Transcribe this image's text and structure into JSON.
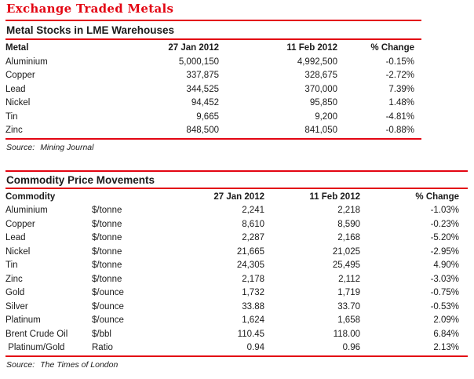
{
  "page_title": "Exchange Traded Metals",
  "accent_color": "#e30613",
  "metal_stocks": {
    "title": "Metal Stocks in LME Warehouses",
    "columns": [
      "Metal",
      "27 Jan 2012",
      "11 Feb 2012",
      "% Change"
    ],
    "rows": [
      [
        "Aluminium",
        "5,000,150",
        "4,992,500",
        "-0.15%"
      ],
      [
        "Copper",
        "337,875",
        "328,675",
        "-2.72%"
      ],
      [
        "Lead",
        "344,525",
        "370,000",
        "7.39%"
      ],
      [
        "Nickel",
        "94,452",
        "95,850",
        "1.48%"
      ],
      [
        "Tin",
        "9,665",
        "9,200",
        "-4.81%"
      ],
      [
        "Zinc",
        "848,500",
        "841,050",
        "-0.88%"
      ]
    ],
    "source_label": "Source:",
    "source": "Mining Journal"
  },
  "commodity_prices": {
    "title": "Commodity Price Movements",
    "columns": [
      "Commodity",
      "",
      "27 Jan 2012",
      "11 Feb 2012",
      "% Change"
    ],
    "rows": [
      [
        "Aluminium",
        "$/tonne",
        "2,241",
        "2,218",
        "-1.03%"
      ],
      [
        "Copper",
        "$/tonne",
        "8,610",
        "8,590",
        "-0.23%"
      ],
      [
        "Lead",
        "$/tonne",
        "2,287",
        "2,168",
        "-5.20%"
      ],
      [
        "Nickel",
        "$/tonne",
        "21,665",
        "21,025",
        "-2.95%"
      ],
      [
        "Tin",
        "$/tonne",
        "24,305",
        "25,495",
        "4.90%"
      ],
      [
        "Zinc",
        "$/tonne",
        "2,178",
        "2,112",
        "-3.03%"
      ],
      [
        "Gold",
        "$/ounce",
        "1,732",
        "1,719",
        "-0.75%"
      ],
      [
        "Silver",
        "$/ounce",
        "33.88",
        "33.70",
        "-0.53%"
      ],
      [
        "Platinum",
        "$/ounce",
        "1,624",
        "1,658",
        "2.09%"
      ],
      [
        "Brent Crude Oil",
        "$/bbl",
        "110.45",
        "118.00",
        "6.84%"
      ],
      [
        " Platinum/Gold",
        "Ratio",
        "0.94",
        "0.96",
        "2.13%"
      ]
    ],
    "source_label": "Source:",
    "source": "The Times of London"
  }
}
